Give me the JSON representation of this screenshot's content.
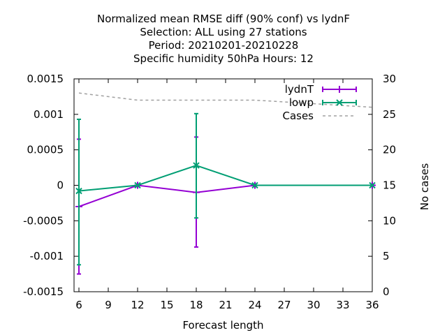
{
  "chart_data": {
    "type": "line",
    "title": [
      "Normalized mean RMSE diff (90% conf) vs lydnF",
      "Selection: ALL using    27 stations",
      "Period: 20210201-20210228",
      "Specific humidity 50hPa   Hours:  12"
    ],
    "xlabel": "Forecast length",
    "ylabel": "",
    "y2label": "No cases",
    "xlim": [
      5.5,
      36
    ],
    "ylim": [
      -0.0015,
      0.0015
    ],
    "y2lim": [
      0,
      30
    ],
    "x_ticks": [
      6,
      9,
      12,
      15,
      18,
      21,
      24,
      27,
      30,
      33,
      36
    ],
    "y_ticks": [
      -0.0015,
      -0.001,
      -0.0005,
      0,
      0.0005,
      0.001,
      0.0015
    ],
    "y_tick_labels": [
      "-0.0015",
      "-0.001",
      "-0.0005",
      "0",
      "0.0005",
      "0.001",
      "0.0015"
    ],
    "y2_ticks": [
      0,
      5,
      10,
      15,
      20,
      25,
      30
    ],
    "legend_position": "top-right",
    "grid": false,
    "series": [
      {
        "name": "lydnT",
        "color": "#9400d3",
        "axis": "y",
        "x": [
          6,
          12,
          18,
          24,
          36
        ],
        "y": [
          -0.0003,
          0.0,
          -0.0001,
          0.0,
          0.0
        ],
        "err_low": [
          -0.00125,
          0.0,
          -0.00087,
          0.0,
          0.0
        ],
        "err_high": [
          0.00065,
          0.0,
          0.00068,
          0.0,
          0.0
        ]
      },
      {
        "name": "lowp",
        "color": "#009e73",
        "axis": "y",
        "x": [
          6,
          12,
          18,
          24,
          36
        ],
        "y": [
          -8e-05,
          0.0,
          0.00028,
          0.0,
          0.0
        ],
        "err_low": [
          -0.00112,
          0.0,
          -0.00046,
          0.0,
          0.0
        ],
        "err_high": [
          0.00093,
          0.0,
          0.00101,
          0.0,
          0.0
        ]
      },
      {
        "name": "Cases",
        "color": "#a0a0a0",
        "axis": "y2",
        "dashed": true,
        "x": [
          6,
          12,
          18,
          24,
          36
        ],
        "y": [
          28,
          27,
          27,
          27,
          26
        ]
      }
    ]
  }
}
